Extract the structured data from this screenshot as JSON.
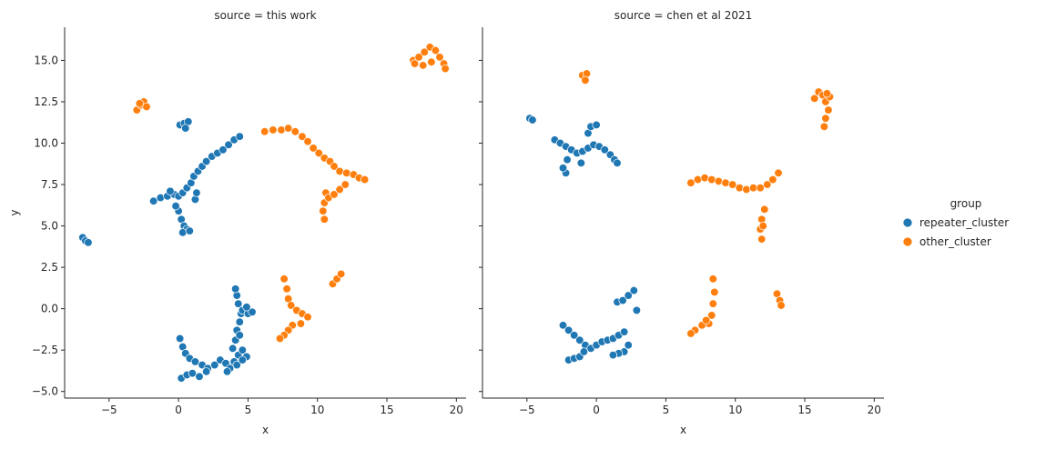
{
  "chart_data": {
    "type": "scatter",
    "x_label": "x",
    "y_label": "y",
    "xlim": [
      -8.2,
      20.7
    ],
    "ylim": [
      -5.4,
      17.0
    ],
    "x_ticks": [
      -5,
      0,
      5,
      10,
      15,
      20
    ],
    "y_ticks": [
      -5.0,
      -2.5,
      0.0,
      2.5,
      5.0,
      7.5,
      10.0,
      12.5,
      15.0
    ],
    "x_tick_labels": [
      "−5",
      "0",
      "5",
      "10",
      "15",
      "20"
    ],
    "y_tick_labels": [
      "−5.0",
      "−2.5",
      "0.0",
      "2.5",
      "5.0",
      "7.5",
      "10.0",
      "12.5",
      "15.0"
    ],
    "legend": {
      "title": "group",
      "entries": [
        {
          "name": "repeater_cluster",
          "color": "#1f77b4"
        },
        {
          "name": "other_cluster",
          "color": "#ff7f0e"
        }
      ]
    },
    "facets": [
      {
        "title": "source = this work",
        "series": [
          {
            "name": "repeater_cluster",
            "color": "#1f77b4",
            "points": [
              [
                -6.9,
                4.3
              ],
              [
                -6.7,
                4.1
              ],
              [
                -6.5,
                4.0
              ],
              [
                0.1,
                11.1
              ],
              [
                0.4,
                11.2
              ],
              [
                0.7,
                11.3
              ],
              [
                0.5,
                10.9
              ],
              [
                -1.8,
                6.5
              ],
              [
                -1.3,
                6.7
              ],
              [
                -0.8,
                6.8
              ],
              [
                -0.3,
                6.9
              ],
              [
                -0.6,
                7.1
              ],
              [
                0.0,
                6.8
              ],
              [
                0.3,
                7.0
              ],
              [
                0.6,
                7.3
              ],
              [
                0.9,
                7.6
              ],
              [
                1.1,
                8.0
              ],
              [
                1.4,
                8.3
              ],
              [
                1.7,
                8.6
              ],
              [
                2.0,
                8.9
              ],
              [
                2.4,
                9.2
              ],
              [
                2.8,
                9.4
              ],
              [
                3.2,
                9.6
              ],
              [
                3.6,
                9.9
              ],
              [
                4.0,
                10.2
              ],
              [
                4.4,
                10.4
              ],
              [
                0.0,
                5.9
              ],
              [
                0.2,
                5.4
              ],
              [
                0.4,
                5.0
              ],
              [
                0.6,
                4.8
              ],
              [
                0.3,
                4.6
              ],
              [
                0.8,
                4.7
              ],
              [
                -0.2,
                6.2
              ],
              [
                1.2,
                6.6
              ],
              [
                1.3,
                7.0
              ],
              [
                0.1,
                -1.8
              ],
              [
                0.3,
                -2.3
              ],
              [
                0.5,
                -2.7
              ],
              [
                0.8,
                -3.0
              ],
              [
                1.2,
                -3.2
              ],
              [
                1.7,
                -3.4
              ],
              [
                2.1,
                -3.6
              ],
              [
                2.6,
                -3.4
              ],
              [
                3.0,
                -3.1
              ],
              [
                3.4,
                -3.3
              ],
              [
                3.7,
                -3.6
              ],
              [
                4.0,
                -3.2
              ],
              [
                4.3,
                -2.8
              ],
              [
                4.6,
                -2.5
              ],
              [
                4.9,
                -2.9
              ],
              [
                0.2,
                -4.2
              ],
              [
                0.6,
                -4.0
              ],
              [
                1.0,
                -3.9
              ],
              [
                1.5,
                -4.1
              ],
              [
                2.0,
                -3.8
              ],
              [
                3.5,
                -3.8
              ],
              [
                4.2,
                -3.4
              ],
              [
                4.6,
                -3.1
              ],
              [
                3.9,
                -2.4
              ],
              [
                4.1,
                -1.9
              ],
              [
                4.2,
                -1.3
              ],
              [
                4.4,
                -0.8
              ],
              [
                4.5,
                -0.3
              ],
              [
                4.3,
                0.3
              ],
              [
                4.2,
                0.8
              ],
              [
                4.1,
                1.2
              ],
              [
                4.6,
                -0.1
              ],
              [
                5.0,
                -0.3
              ],
              [
                5.3,
                -0.2
              ],
              [
                4.9,
                0.1
              ],
              [
                4.4,
                -1.6
              ]
            ]
          },
          {
            "name": "other_cluster",
            "color": "#ff7f0e",
            "points": [
              [
                -3.0,
                12.0
              ],
              [
                -2.7,
                12.3
              ],
              [
                -2.5,
                12.5
              ],
              [
                -2.3,
                12.2
              ],
              [
                -2.8,
                12.4
              ],
              [
                6.2,
                10.7
              ],
              [
                6.8,
                10.8
              ],
              [
                7.4,
                10.8
              ],
              [
                7.9,
                10.9
              ],
              [
                8.4,
                10.7
              ],
              [
                8.9,
                10.4
              ],
              [
                9.3,
                10.1
              ],
              [
                9.7,
                9.7
              ],
              [
                10.1,
                9.4
              ],
              [
                10.5,
                9.1
              ],
              [
                10.9,
                8.9
              ],
              [
                11.2,
                8.6
              ],
              [
                11.6,
                8.3
              ],
              [
                12.1,
                8.2
              ],
              [
                12.6,
                8.1
              ],
              [
                13.0,
                7.9
              ],
              [
                13.4,
                7.8
              ],
              [
                10.6,
                7.0
              ],
              [
                10.5,
                6.4
              ],
              [
                10.4,
                5.9
              ],
              [
                10.5,
                5.4
              ],
              [
                10.8,
                6.7
              ],
              [
                11.2,
                6.9
              ],
              [
                11.6,
                7.2
              ],
              [
                12.0,
                7.5
              ],
              [
                11.1,
                1.5
              ],
              [
                11.4,
                1.8
              ],
              [
                11.7,
                2.1
              ],
              [
                7.6,
                1.8
              ],
              [
                7.8,
                1.2
              ],
              [
                7.9,
                0.6
              ],
              [
                8.1,
                0.2
              ],
              [
                8.5,
                -0.1
              ],
              [
                8.9,
                -0.3
              ],
              [
                9.3,
                -0.5
              ],
              [
                8.8,
                -0.9
              ],
              [
                8.2,
                -1.0
              ],
              [
                7.9,
                -1.3
              ],
              [
                7.6,
                -1.6
              ],
              [
                7.3,
                -1.8
              ],
              [
                16.9,
                15.0
              ],
              [
                17.3,
                15.2
              ],
              [
                17.7,
                15.5
              ],
              [
                18.1,
                15.8
              ],
              [
                18.5,
                15.6
              ],
              [
                18.8,
                15.2
              ],
              [
                19.1,
                14.8
              ],
              [
                17.6,
                14.7
              ],
              [
                18.2,
                14.9
              ],
              [
                17.0,
                14.8
              ],
              [
                19.2,
                14.5
              ]
            ]
          }
        ]
      },
      {
        "title": "source = chen et al 2021",
        "series": [
          {
            "name": "repeater_cluster",
            "color": "#1f77b4",
            "points": [
              [
                -4.8,
                11.5
              ],
              [
                -4.6,
                11.4
              ],
              [
                -3.0,
                10.2
              ],
              [
                -2.6,
                10.0
              ],
              [
                -2.2,
                9.8
              ],
              [
                -1.8,
                9.6
              ],
              [
                -1.4,
                9.4
              ],
              [
                -1.0,
                9.5
              ],
              [
                -0.6,
                9.7
              ],
              [
                -0.2,
                9.9
              ],
              [
                0.2,
                9.8
              ],
              [
                0.6,
                9.6
              ],
              [
                1.0,
                9.3
              ],
              [
                1.3,
                9.0
              ],
              [
                1.5,
                8.8
              ],
              [
                -0.6,
                10.6
              ],
              [
                -0.4,
                11.0
              ],
              [
                0.0,
                11.1
              ],
              [
                -2.2,
                8.2
              ],
              [
                -2.4,
                8.5
              ],
              [
                -2.1,
                9.0
              ],
              [
                -1.1,
                8.8
              ],
              [
                -2.4,
                -1.0
              ],
              [
                -2.0,
                -1.3
              ],
              [
                -1.6,
                -1.6
              ],
              [
                -1.2,
                -1.9
              ],
              [
                -0.8,
                -2.2
              ],
              [
                -0.4,
                -2.4
              ],
              [
                0.0,
                -2.2
              ],
              [
                0.4,
                -2.0
              ],
              [
                0.8,
                -1.9
              ],
              [
                1.2,
                -1.8
              ],
              [
                1.6,
                -1.6
              ],
              [
                2.0,
                -1.4
              ],
              [
                2.3,
                -2.2
              ],
              [
                2.0,
                -2.6
              ],
              [
                1.6,
                -2.7
              ],
              [
                1.2,
                -2.8
              ],
              [
                -2.0,
                -3.1
              ],
              [
                -1.6,
                -3.0
              ],
              [
                -1.2,
                -2.9
              ],
              [
                -0.9,
                -2.6
              ],
              [
                1.5,
                0.4
              ],
              [
                1.9,
                0.5
              ],
              [
                2.3,
                0.8
              ],
              [
                2.7,
                1.1
              ],
              [
                2.9,
                -0.1
              ]
            ]
          },
          {
            "name": "other_cluster",
            "color": "#ff7f0e",
            "points": [
              [
                -1.0,
                14.1
              ],
              [
                -0.7,
                14.2
              ],
              [
                -0.8,
                13.8
              ],
              [
                15.7,
                12.7
              ],
              [
                16.0,
                13.1
              ],
              [
                16.3,
                12.9
              ],
              [
                16.5,
                12.5
              ],
              [
                16.7,
                12.0
              ],
              [
                16.5,
                11.5
              ],
              [
                16.4,
                11.0
              ],
              [
                16.8,
                12.8
              ],
              [
                16.6,
                13.0
              ],
              [
                6.8,
                7.6
              ],
              [
                7.3,
                7.8
              ],
              [
                7.8,
                7.9
              ],
              [
                8.3,
                7.8
              ],
              [
                8.8,
                7.7
              ],
              [
                9.3,
                7.6
              ],
              [
                9.8,
                7.5
              ],
              [
                10.3,
                7.3
              ],
              [
                10.8,
                7.2
              ],
              [
                11.3,
                7.3
              ],
              [
                11.8,
                7.3
              ],
              [
                12.3,
                7.5
              ],
              [
                12.7,
                7.8
              ],
              [
                13.1,
                8.2
              ],
              [
                12.1,
                6.0
              ],
              [
                11.9,
                5.4
              ],
              [
                11.8,
                4.8
              ],
              [
                11.9,
                4.2
              ],
              [
                12.0,
                5.0
              ],
              [
                8.4,
                1.8
              ],
              [
                8.5,
                1.0
              ],
              [
                8.4,
                0.3
              ],
              [
                8.3,
                -0.4
              ],
              [
                8.1,
                -0.9
              ],
              [
                7.6,
                -1.0
              ],
              [
                7.1,
                -1.3
              ],
              [
                6.8,
                -1.5
              ],
              [
                7.9,
                -0.7
              ],
              [
                13.0,
                0.9
              ],
              [
                13.2,
                0.5
              ],
              [
                13.3,
                0.2
              ]
            ]
          }
        ]
      }
    ]
  }
}
